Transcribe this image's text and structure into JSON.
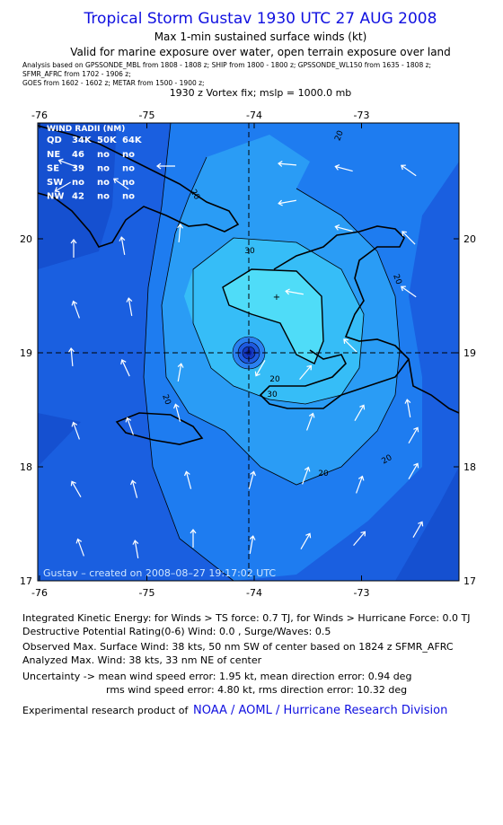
{
  "header": {
    "title": "Tropical Storm Gustav 1930 UTC 27 AUG 2008",
    "subtitle": "Max 1-min sustained surface winds (kt)",
    "valid": "Valid for marine exposure over water, open terrain exposure over land",
    "analysis": [
      "Analysis based on  GPSSONDE_MBL from 1808 - 1808 z;  SHIP from 1800 - 1800 z;  GPSSONDE_WL150 from 1635 - 1808 z;",
      "SFMR_AFRC from 1702 - 1906 z;",
      "GOES from 1602 - 1602 z;  METAR from 1500 - 1900 z;"
    ],
    "vortex": "1930 z Vortex fix; mslp = 1000.0 mb"
  },
  "map": {
    "lon_ticks": [
      -76,
      -75,
      -74,
      -73
    ],
    "lat_ticks": [
      20,
      19,
      18,
      17
    ],
    "radii": {
      "title": "WIND RADII (NM)",
      "columns": [
        "QD",
        "34K",
        "50K",
        "64K"
      ],
      "rows": [
        [
          "NE",
          "46",
          "no",
          "no"
        ],
        [
          "SE",
          "39",
          "no",
          "no"
        ],
        [
          "SW",
          "no",
          "no",
          "no"
        ],
        [
          "NW",
          "42",
          "no",
          "no"
        ]
      ]
    },
    "contour_labels": [
      20,
      20,
      30,
      20,
      20,
      30,
      20,
      20,
      20
    ],
    "credit": "Gustav – created on 2008–08–27 19:17:02 UTC"
  },
  "footer": {
    "ike": "Integrated Kinetic Energy:  for Winds > TS force: 0.7 TJ,  for Winds > Hurricane Force: 0.0 TJ",
    "dpr": "Destructive Potential Rating(0-6)   Wind: 0.0 , Surge/Waves: 0.5",
    "observed": "Observed Max. Surface Wind: 38 kts, 50 nm SW of center based on 1824 z SFMR_AFRC",
    "analyzed": "Analyzed Max. Wind: 38 kts, 33 nm NE of center",
    "uncertainty1": "Uncertainty -> mean wind speed error: 1.95 kt,   mean direction error: 0.94 deg",
    "uncertainty2": "rms wind speed error: 4.80 kt,   rms direction error: 10.32 deg",
    "credit_prefix": "Experimental research product of",
    "credit_link": "NOAA / AOML / Hurricane Research Division"
  }
}
